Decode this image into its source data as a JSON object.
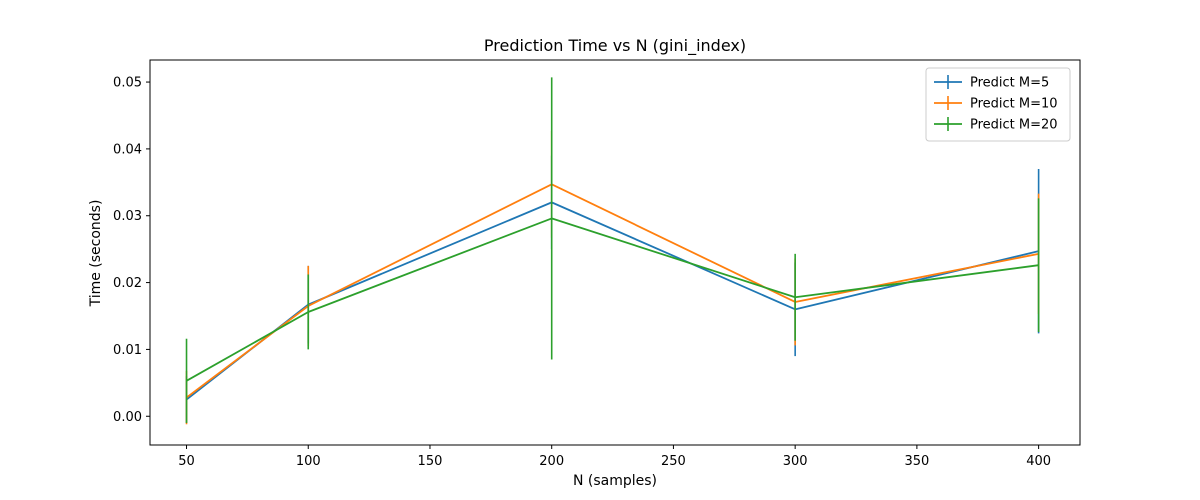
{
  "chart_data": {
    "type": "line",
    "title": "Prediction Time vs N (gini_index)",
    "xlabel": "N (samples)",
    "ylabel": "Time (seconds)",
    "xlim": [
      35,
      417
    ],
    "ylim": [
      -0.0043,
      0.0533
    ],
    "xticks": [
      50,
      100,
      150,
      200,
      250,
      300,
      350,
      400
    ],
    "yticks": [
      0.0,
      0.01,
      0.02,
      0.03,
      0.04,
      0.05
    ],
    "ytick_labels": [
      "0.00",
      "0.01",
      "0.02",
      "0.03",
      "0.04",
      "0.05"
    ],
    "x": [
      50,
      100,
      200,
      300,
      400
    ],
    "legend_position": "top-right",
    "grid": false,
    "error_bars": true,
    "series": [
      {
        "name": "Predict M=5",
        "color": "#1f77b4",
        "values": [
          0.0025,
          0.0167,
          0.032,
          0.016,
          0.0247
        ],
        "errors": [
          0.0035,
          0.0058,
          0.007,
          0.007,
          0.0123
        ]
      },
      {
        "name": "Predict M=10",
        "color": "#ff7f0e",
        "values": [
          0.0028,
          0.0165,
          0.0347,
          0.0171,
          0.0243
        ],
        "errors": [
          0.004,
          0.006,
          0.008,
          0.0065,
          0.009
        ]
      },
      {
        "name": "Predict M=20",
        "color": "#2ca02c",
        "values": [
          0.0053,
          0.0156,
          0.0296,
          0.0178,
          0.0226
        ],
        "errors": [
          0.0063,
          0.0056,
          0.0211,
          0.0065,
          0.01
        ]
      }
    ]
  }
}
